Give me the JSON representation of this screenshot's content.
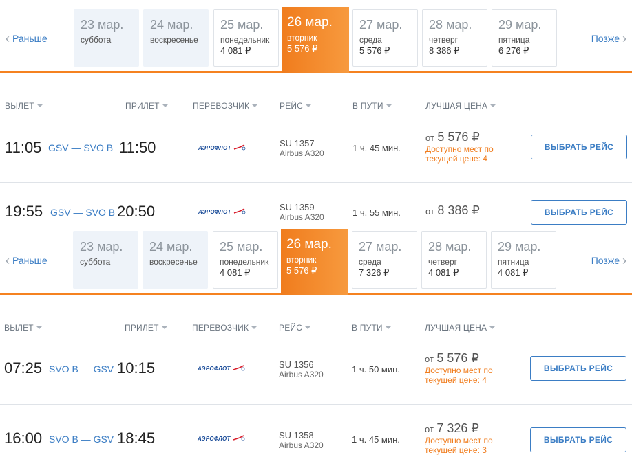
{
  "blocks": [
    {
      "nav_prev": "Раньше",
      "nav_next": "Позже",
      "dates": [
        {
          "date": "23 мар.",
          "weekday": "суббота",
          "price": ""
        },
        {
          "date": "24 мар.",
          "weekday": "воскресенье",
          "price": ""
        },
        {
          "date": "25 мар.",
          "weekday": "понедельник",
          "price": "4 081 ₽"
        },
        {
          "date": "26 мар.",
          "weekday": "вторник",
          "price": "5 576 ₽"
        },
        {
          "date": "27 мар.",
          "weekday": "среда",
          "price": "5 576 ₽"
        },
        {
          "date": "28 мар.",
          "weekday": "четверг",
          "price": "8 386 ₽"
        },
        {
          "date": "29 мар.",
          "weekday": "пятница",
          "price": "6 276 ₽"
        }
      ],
      "columns": [
        "ВЫЛЕТ",
        "ПРИЛЕТ",
        "ПЕРЕВОЗЧИК",
        "РЕЙС",
        "В ПУТИ",
        "ЛУЧШАЯ ЦЕНА"
      ],
      "flights": [
        {
          "dep": "11:05",
          "route": "GSV — SVO B",
          "arr": "11:50",
          "airline": "АЭРОФЛОТ",
          "flight": "SU 1357",
          "aircraft": "Airbus A320",
          "duration": "1 ч. 45 мин.",
          "from": "от",
          "price": "5 576 ₽",
          "seats": "Доступно мест по текущей цене: 4",
          "button": "ВЫБРАТЬ РЕЙС"
        },
        {
          "dep": "19:55",
          "route": "GSV — SVO B",
          "arr": "20:50",
          "airline": "АЭРОФЛОТ",
          "flight": "SU 1359",
          "aircraft": "Airbus A320",
          "duration": "1 ч. 55 мин.",
          "from": "от",
          "price": "8 386 ₽",
          "seats": "",
          "button": "ВЫБРАТЬ РЕЙС"
        }
      ]
    },
    {
      "nav_prev": "Раньше",
      "nav_next": "Позже",
      "dates": [
        {
          "date": "23 мар.",
          "weekday": "суббота",
          "price": ""
        },
        {
          "date": "24 мар.",
          "weekday": "воскресенье",
          "price": ""
        },
        {
          "date": "25 мар.",
          "weekday": "понедельник",
          "price": "4 081 ₽"
        },
        {
          "date": "26 мар.",
          "weekday": "вторник",
          "price": "5 576 ₽"
        },
        {
          "date": "27 мар.",
          "weekday": "среда",
          "price": "7 326 ₽"
        },
        {
          "date": "28 мар.",
          "weekday": "четверг",
          "price": "4 081 ₽"
        },
        {
          "date": "29 мар.",
          "weekday": "пятница",
          "price": "4 081 ₽"
        }
      ],
      "columns": [
        "ВЫЛЕТ",
        "ПРИЛЕТ",
        "ПЕРЕВОЗЧИК",
        "РЕЙС",
        "В ПУТИ",
        "ЛУЧШАЯ ЦЕНА"
      ],
      "flights": [
        {
          "dep": "07:25",
          "route": "SVO B — GSV",
          "arr": "10:15",
          "airline": "АЭРОФЛОТ",
          "flight": "SU 1356",
          "aircraft": "Airbus A320",
          "duration": "1 ч. 50 мин.",
          "from": "от",
          "price": "5 576 ₽",
          "seats": "Доступно мест по текущей цене: 4",
          "button": "ВЫБРАТЬ РЕЙС"
        },
        {
          "dep": "16:00",
          "route": "SVO B — GSV",
          "arr": "18:45",
          "airline": "АЭРОФЛОТ",
          "flight": "SU 1358",
          "aircraft": "Airbus A320",
          "duration": "1 ч. 45 мин.",
          "from": "от",
          "price": "7 326 ₽",
          "seats": "Доступно мест по текущей цене: 3",
          "button": "ВЫБРАТЬ РЕЙС"
        }
      ]
    }
  ],
  "colors": {
    "accent": "#f58220",
    "link": "#3b7dc4",
    "seats": "#f07c1d"
  },
  "icons": {
    "prev": "chevron-left-icon",
    "next": "chevron-right-icon",
    "sort": "caret-down-icon",
    "airline": "aeroflot-logo"
  }
}
